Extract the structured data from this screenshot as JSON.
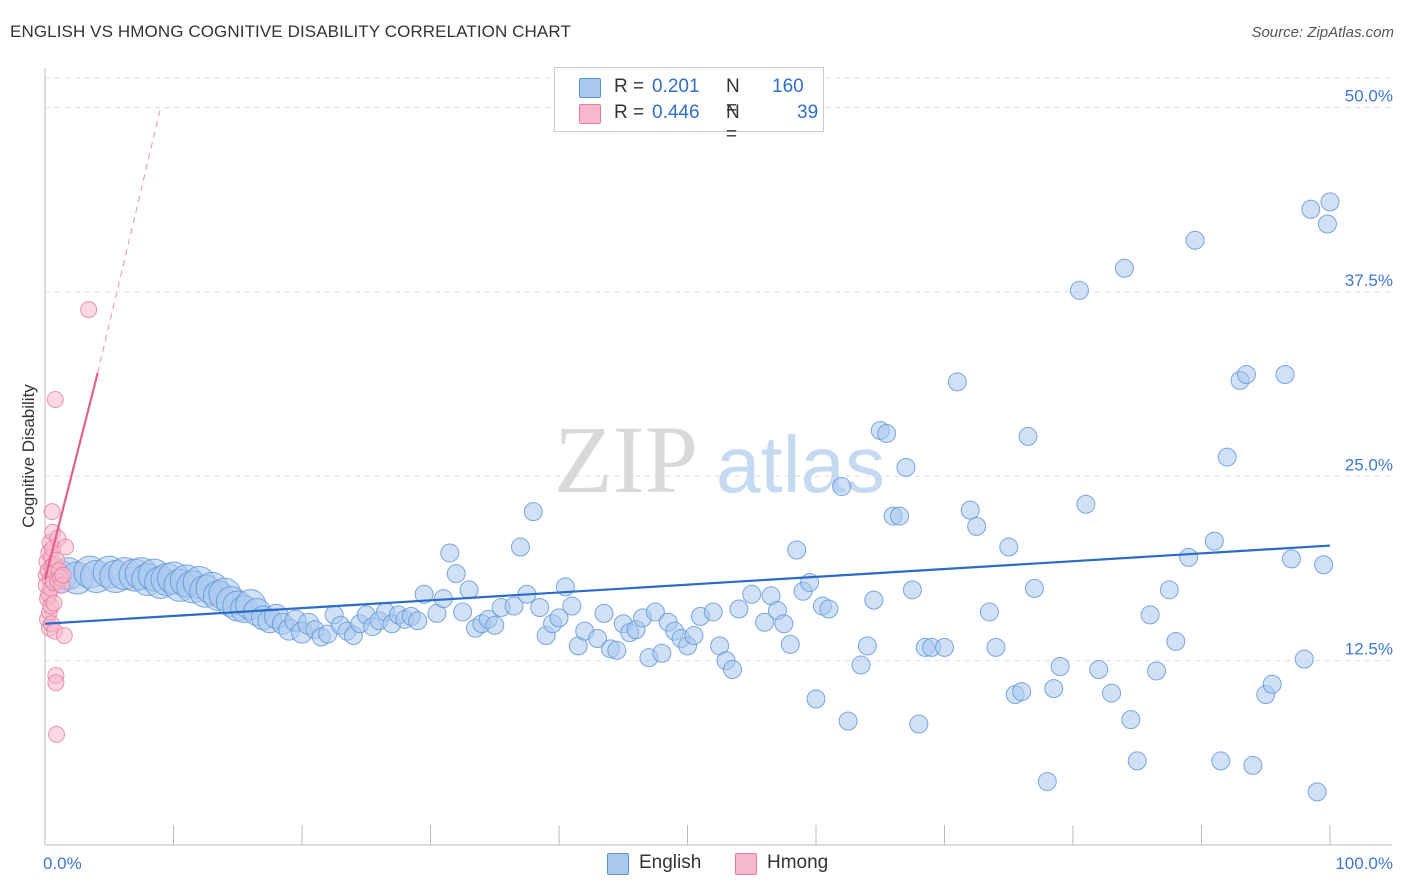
{
  "title": "ENGLISH VS HMONG COGNITIVE DISABILITY CORRELATION CHART",
  "source": "Source: ZipAtlas.com",
  "watermark": {
    "zip": "ZIP",
    "atlas": "atlas"
  },
  "legend": {
    "english": {
      "r_label": "R =",
      "r_value": "0.201",
      "n_label": "N =",
      "n_value": "160"
    },
    "hmong": {
      "r_label": "R =",
      "r_value": "0.446",
      "n_label": "N =",
      "n_value": "39"
    }
  },
  "bottom_legend": {
    "english": "English",
    "hmong": "Hmong"
  },
  "colors": {
    "english_fill": "#a9c8ee",
    "english_stroke": "#5b93d8",
    "english_line": "#2a6cc8",
    "hmong_fill": "#f7b8cb",
    "hmong_stroke": "#e47d9d",
    "hmong_line": "#e0608e",
    "grid": "#dddddd",
    "tick_label": "#3d78cf"
  },
  "chart_data": {
    "type": "scatter",
    "title": "ENGLISH VS HMONG COGNITIVE DISABILITY CORRELATION CHART",
    "xlabel": "",
    "ylabel": "Cognitive Disability",
    "xlim": [
      0,
      100
    ],
    "ylim": [
      0,
      52
    ],
    "x_tick_labels": [
      "0.0%",
      "100.0%"
    ],
    "y_ticks": [
      12.5,
      25.0,
      37.5,
      50.0
    ],
    "y_tick_labels": [
      "12.5%",
      "25.0%",
      "37.5%",
      "50.0%"
    ],
    "grid": true,
    "series": [
      {
        "name": "English",
        "r": 0.201,
        "n": 160,
        "trend": {
          "x": [
            0,
            100
          ],
          "y": [
            15.0,
            20.3
          ]
        },
        "points": [
          [
            1.2,
            18.2,
            1.6
          ],
          [
            1.8,
            18.4,
            1.5
          ],
          [
            2.5,
            18.1,
            1.4
          ],
          [
            3.5,
            18.5,
            1.3
          ],
          [
            4.0,
            18.2,
            1.3
          ],
          [
            5.0,
            18.5,
            1.2
          ],
          [
            5.5,
            18.2,
            1.2
          ],
          [
            6.2,
            18.4,
            1.4
          ],
          [
            7.0,
            18.3,
            1.3
          ],
          [
            7.5,
            18.4,
            1.2
          ],
          [
            8.0,
            18.0,
            1.3
          ],
          [
            8.5,
            18.3,
            1.4
          ],
          [
            9.0,
            17.8,
            1.3
          ],
          [
            9.5,
            18.0,
            1.5
          ],
          [
            10.0,
            18.1,
            1.3
          ],
          [
            10.5,
            17.6,
            1.2
          ],
          [
            11.0,
            17.9,
            1.4
          ],
          [
            11.5,
            17.5,
            1.3
          ],
          [
            12.0,
            17.8,
            1.5
          ],
          [
            12.5,
            17.2,
            1.3
          ],
          [
            13.0,
            17.4,
            1.2
          ],
          [
            13.5,
            16.9,
            1.0
          ],
          [
            14.0,
            17.0,
            1.1
          ],
          [
            14.5,
            16.5,
            1.0
          ],
          [
            15.0,
            16.2,
            1.0
          ],
          [
            15.5,
            16.0,
            0.9
          ],
          [
            16.0,
            16.3,
            1.0
          ],
          [
            16.5,
            15.8,
            0.9
          ],
          [
            17.0,
            15.4,
            0.8
          ],
          [
            17.5,
            15.2,
            0.8
          ],
          [
            18.0,
            15.5,
            0.8
          ],
          [
            18.5,
            15.0,
            0.7
          ],
          [
            19.0,
            14.6,
            0.7
          ],
          [
            19.5,
            15.2,
            0.7
          ],
          [
            20.0,
            14.4,
            0.7
          ],
          [
            20.5,
            15.0,
            0.7
          ],
          [
            21.0,
            14.6,
            0.6
          ],
          [
            21.5,
            14.1,
            0.6
          ],
          [
            22.0,
            14.3,
            0.6
          ],
          [
            22.5,
            15.6,
            0.6
          ],
          [
            23.0,
            14.9,
            0.6
          ],
          [
            23.5,
            14.5,
            0.6
          ],
          [
            24.0,
            14.2,
            0.6
          ],
          [
            24.5,
            15.0,
            0.6
          ],
          [
            25.0,
            15.6,
            0.6
          ],
          [
            25.5,
            14.8,
            0.6
          ],
          [
            26.0,
            15.2,
            0.6
          ],
          [
            26.5,
            15.8,
            0.6
          ],
          [
            27.0,
            15.0,
            0.6
          ],
          [
            27.5,
            15.6,
            0.6
          ],
          [
            28.0,
            15.3,
            0.6
          ],
          [
            28.5,
            15.5,
            0.6
          ],
          [
            29.0,
            15.2,
            0.6
          ],
          [
            29.5,
            17.0,
            0.6
          ],
          [
            30.5,
            15.7,
            0.6
          ],
          [
            31.0,
            16.7,
            0.6
          ],
          [
            31.5,
            19.8,
            0.6
          ],
          [
            32.0,
            18.4,
            0.6
          ],
          [
            32.5,
            15.8,
            0.6
          ],
          [
            33.0,
            17.3,
            0.6
          ],
          [
            33.5,
            14.7,
            0.6
          ],
          [
            34.0,
            15.0,
            0.6
          ],
          [
            34.5,
            15.3,
            0.6
          ],
          [
            35.0,
            14.9,
            0.6
          ],
          [
            35.5,
            16.1,
            0.6
          ],
          [
            36.5,
            16.2,
            0.6
          ],
          [
            37.0,
            20.2,
            0.6
          ],
          [
            37.5,
            17.0,
            0.6
          ],
          [
            38.0,
            22.6,
            0.6
          ],
          [
            38.5,
            16.1,
            0.6
          ],
          [
            39.0,
            14.2,
            0.6
          ],
          [
            39.5,
            15.0,
            0.6
          ],
          [
            40.0,
            15.4,
            0.6
          ],
          [
            40.5,
            17.5,
            0.6
          ],
          [
            41.0,
            16.2,
            0.6
          ],
          [
            41.5,
            13.5,
            0.6
          ],
          [
            42.0,
            14.5,
            0.6
          ],
          [
            43.0,
            14.0,
            0.6
          ],
          [
            43.5,
            15.7,
            0.6
          ],
          [
            44.0,
            13.3,
            0.6
          ],
          [
            44.5,
            13.2,
            0.6
          ],
          [
            45.0,
            15.0,
            0.6
          ],
          [
            45.5,
            14.4,
            0.6
          ],
          [
            46.0,
            14.6,
            0.6
          ],
          [
            46.5,
            15.4,
            0.6
          ],
          [
            47.0,
            12.7,
            0.6
          ],
          [
            47.5,
            15.8,
            0.6
          ],
          [
            48.0,
            13.0,
            0.6
          ],
          [
            48.5,
            15.1,
            0.6
          ],
          [
            49.0,
            14.5,
            0.6
          ],
          [
            49.5,
            14.0,
            0.6
          ],
          [
            50.0,
            13.5,
            0.6
          ],
          [
            50.5,
            14.2,
            0.6
          ],
          [
            51.0,
            15.5,
            0.6
          ],
          [
            52.0,
            15.8,
            0.6
          ],
          [
            52.5,
            13.5,
            0.6
          ],
          [
            53.0,
            12.5,
            0.6
          ],
          [
            53.5,
            11.9,
            0.6
          ],
          [
            54.0,
            16.0,
            0.6
          ],
          [
            55.0,
            17.0,
            0.6
          ],
          [
            56.0,
            15.1,
            0.6
          ],
          [
            56.5,
            16.9,
            0.6
          ],
          [
            57.0,
            15.9,
            0.6
          ],
          [
            57.5,
            15.0,
            0.6
          ],
          [
            58.0,
            13.6,
            0.6
          ],
          [
            58.5,
            20.0,
            0.6
          ],
          [
            59.0,
            17.2,
            0.6
          ],
          [
            59.5,
            17.8,
            0.6
          ],
          [
            60.0,
            9.9,
            0.6
          ],
          [
            60.5,
            16.2,
            0.6
          ],
          [
            61.0,
            16.0,
            0.6
          ],
          [
            62.0,
            24.3,
            0.6
          ],
          [
            62.5,
            8.4,
            0.6
          ],
          [
            63.5,
            12.2,
            0.6
          ],
          [
            64.0,
            13.5,
            0.6
          ],
          [
            64.5,
            16.6,
            0.6
          ],
          [
            65.0,
            28.1,
            0.6
          ],
          [
            65.5,
            27.9,
            0.6
          ],
          [
            66.0,
            22.3,
            0.6
          ],
          [
            66.5,
            22.3,
            0.6
          ],
          [
            67.0,
            25.6,
            0.6
          ],
          [
            67.5,
            17.3,
            0.6
          ],
          [
            68.0,
            8.2,
            0.6
          ],
          [
            68.5,
            13.4,
            0.6
          ],
          [
            69.0,
            13.4,
            0.6
          ],
          [
            70.0,
            13.4,
            0.6
          ],
          [
            71.0,
            31.4,
            0.6
          ],
          [
            72.0,
            22.7,
            0.6
          ],
          [
            72.5,
            21.6,
            0.6
          ],
          [
            73.5,
            15.8,
            0.6
          ],
          [
            74.0,
            13.4,
            0.6
          ],
          [
            75.0,
            20.2,
            0.6
          ],
          [
            75.5,
            10.2,
            0.6
          ],
          [
            76.0,
            10.4,
            0.6
          ],
          [
            76.5,
            27.7,
            0.6
          ],
          [
            77.0,
            17.4,
            0.6
          ],
          [
            78.0,
            4.3,
            0.6
          ],
          [
            78.5,
            10.6,
            0.6
          ],
          [
            79.0,
            12.1,
            0.6
          ],
          [
            80.5,
            37.6,
            0.6
          ],
          [
            81.0,
            23.1,
            0.6
          ],
          [
            82.0,
            11.9,
            0.6
          ],
          [
            83.0,
            10.3,
            0.6
          ],
          [
            84.0,
            39.1,
            0.6
          ],
          [
            84.5,
            8.5,
            0.6
          ],
          [
            85.0,
            5.7,
            0.6
          ],
          [
            86.0,
            15.6,
            0.6
          ],
          [
            86.5,
            11.8,
            0.6
          ],
          [
            87.5,
            17.3,
            0.6
          ],
          [
            88.0,
            13.8,
            0.6
          ],
          [
            89.0,
            19.5,
            0.6
          ],
          [
            89.5,
            41.0,
            0.6
          ],
          [
            91.0,
            20.6,
            0.6
          ],
          [
            91.5,
            5.7,
            0.6
          ],
          [
            92.0,
            26.3,
            0.6
          ],
          [
            93.0,
            31.5,
            0.6
          ],
          [
            93.5,
            31.9,
            0.6
          ],
          [
            94.0,
            5.4,
            0.6
          ],
          [
            95.0,
            10.2,
            0.6
          ],
          [
            95.5,
            10.9,
            0.6
          ],
          [
            96.5,
            31.9,
            0.6
          ],
          [
            97.0,
            19.4,
            0.6
          ],
          [
            98.0,
            12.6,
            0.6
          ],
          [
            98.5,
            43.1,
            0.6
          ],
          [
            99.0,
            3.6,
            0.6
          ],
          [
            99.5,
            19.0,
            0.6
          ],
          [
            99.8,
            42.1,
            0.6
          ],
          [
            100.0,
            43.6,
            0.6
          ]
        ]
      },
      {
        "name": "Hmong",
        "r": 0.446,
        "n": 39,
        "trend": {
          "x": [
            0,
            4.1
          ],
          "y": [
            18.0,
            32.0
          ]
        },
        "trend_extension": {
          "x": [
            4.1,
            9.0
          ],
          "y": [
            32.0,
            50.0
          ]
        },
        "points": [
          [
            0.1,
            18.3
          ],
          [
            0.1,
            17.6
          ],
          [
            0.15,
            19.2
          ],
          [
            0.2,
            15.3
          ],
          [
            0.2,
            16.7
          ],
          [
            0.25,
            18.6
          ],
          [
            0.3,
            17.0
          ],
          [
            0.3,
            19.8
          ],
          [
            0.35,
            15.8
          ],
          [
            0.35,
            14.7
          ],
          [
            0.4,
            20.5
          ],
          [
            0.4,
            18.0
          ],
          [
            0.45,
            16.2
          ],
          [
            0.45,
            17.4
          ],
          [
            0.5,
            19.5
          ],
          [
            0.5,
            15.0
          ],
          [
            0.55,
            22.6
          ],
          [
            0.55,
            18.9
          ],
          [
            0.6,
            21.2
          ],
          [
            0.6,
            20.1
          ],
          [
            0.65,
            17.8
          ],
          [
            0.7,
            19.0
          ],
          [
            0.7,
            16.4
          ],
          [
            0.75,
            14.5
          ],
          [
            0.8,
            30.2
          ],
          [
            0.8,
            18.5
          ],
          [
            0.85,
            11.5
          ],
          [
            0.85,
            11.0
          ],
          [
            0.9,
            7.5
          ],
          [
            0.9,
            19.3
          ],
          [
            1.0,
            20.8
          ],
          [
            1.0,
            17.9
          ],
          [
            1.1,
            18.6
          ],
          [
            1.2,
            18.1
          ],
          [
            1.3,
            17.6
          ],
          [
            1.4,
            18.3
          ],
          [
            1.5,
            14.2
          ],
          [
            1.6,
            20.2
          ],
          [
            3.4,
            36.3
          ]
        ]
      }
    ]
  }
}
